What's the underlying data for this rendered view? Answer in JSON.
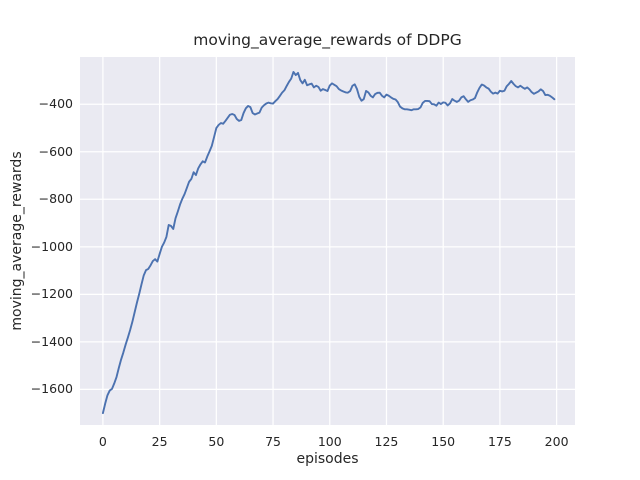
{
  "figure": {
    "title": "moving_average_rewards of DDPG",
    "xlabel": "episodes",
    "ylabel": "moving_average_rewards",
    "colors": {
      "figure_background": "#ffffff",
      "axes_background": "#eaeaf2",
      "grid": "#ffffff",
      "line": "#4c72b0",
      "text": "#262626"
    }
  },
  "chart_data": {
    "type": "line",
    "title": "moving_average_rewards of DDPG",
    "xlabel": "episodes",
    "ylabel": "moving_average_rewards",
    "grid": true,
    "legend": null,
    "xlim": [
      -10.1,
      208.1
    ],
    "ylim": [
      -1750,
      -201
    ],
    "x_ticks": [
      0,
      25,
      50,
      75,
      100,
      125,
      150,
      175,
      200
    ],
    "x_tick_labels": [
      "0",
      "25",
      "50",
      "75",
      "100",
      "125",
      "150",
      "175",
      "200"
    ],
    "y_ticks": [
      -400,
      -600,
      -800,
      -1000,
      -1200,
      -1400,
      -1600
    ],
    "y_tick_labels": [
      "−400",
      "−600",
      "−800",
      "−1000",
      "−1200",
      "−1400",
      "−1600"
    ],
    "series": [
      {
        "name": "moving_average_rewards",
        "x_start": 0,
        "x_step": 1,
        "values": [
          -1700,
          -1660,
          -1625,
          -1605,
          -1598,
          -1575,
          -1548,
          -1510,
          -1475,
          -1445,
          -1412,
          -1382,
          -1350,
          -1315,
          -1275,
          -1235,
          -1198,
          -1158,
          -1120,
          -1098,
          -1093,
          -1078,
          -1060,
          -1052,
          -1062,
          -1030,
          -1000,
          -982,
          -958,
          -908,
          -912,
          -925,
          -880,
          -852,
          -822,
          -798,
          -778,
          -752,
          -726,
          -714,
          -686,
          -698,
          -670,
          -653,
          -640,
          -645,
          -620,
          -598,
          -575,
          -538,
          -500,
          -487,
          -479,
          -482,
          -470,
          -457,
          -444,
          -441,
          -445,
          -462,
          -470,
          -466,
          -437,
          -417,
          -407,
          -412,
          -437,
          -443,
          -439,
          -435,
          -414,
          -404,
          -397,
          -393,
          -396,
          -397,
          -387,
          -378,
          -365,
          -351,
          -341,
          -323,
          -306,
          -292,
          -264,
          -277,
          -268,
          -298,
          -312,
          -297,
          -320,
          -316,
          -313,
          -329,
          -322,
          -327,
          -343,
          -336,
          -340,
          -344,
          -321,
          -312,
          -318,
          -324,
          -336,
          -342,
          -346,
          -350,
          -351,
          -344,
          -322,
          -316,
          -336,
          -369,
          -385,
          -378,
          -344,
          -350,
          -364,
          -371,
          -357,
          -352,
          -351,
          -364,
          -371,
          -359,
          -364,
          -371,
          -377,
          -380,
          -391,
          -410,
          -417,
          -421,
          -421,
          -423,
          -425,
          -421,
          -421,
          -420,
          -413,
          -394,
          -386,
          -386,
          -387,
          -399,
          -400,
          -406,
          -393,
          -399,
          -392,
          -394,
          -405,
          -396,
          -378,
          -385,
          -390,
          -385,
          -371,
          -366,
          -379,
          -390,
          -383,
          -380,
          -374,
          -350,
          -331,
          -317,
          -321,
          -329,
          -334,
          -347,
          -355,
          -351,
          -355,
          -343,
          -346,
          -343,
          -324,
          -314,
          -302,
          -314,
          -324,
          -329,
          -322,
          -329,
          -335,
          -329,
          -337,
          -349,
          -356,
          -351,
          -346,
          -337,
          -344,
          -361,
          -360,
          -364,
          -371,
          -379
        ]
      }
    ]
  }
}
